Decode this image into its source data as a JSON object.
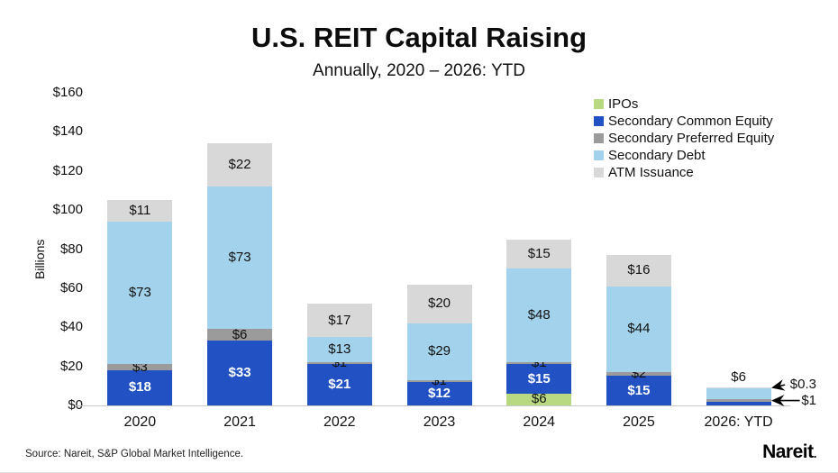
{
  "page": {
    "source_note": "Source: Nareit, S&P Global Market Intelligence.",
    "brand": "Nareit",
    "brand_suffix": "."
  },
  "chart_data": {
    "type": "bar",
    "stacked": true,
    "title": "U.S. REIT Capital Raising",
    "subtitle": "Annually, 2020 – 2026: YTD",
    "ylabel": "Billions",
    "xlabel": "",
    "ylim": [
      0,
      160
    ],
    "ytick_step": 20,
    "ytick_labels": [
      "$0",
      "$20",
      "$40",
      "$60",
      "$80",
      "$100",
      "$120",
      "$140",
      "$160"
    ],
    "grid": false,
    "legend_position": "top-right",
    "categories": [
      "2020",
      "2021",
      "2022",
      "2023",
      "2024",
      "2025",
      "2026: YTD"
    ],
    "series": [
      {
        "name": "IPOs",
        "color": "#b8d981",
        "values": [
          0,
          0,
          0,
          0,
          6,
          0,
          0
        ]
      },
      {
        "name": "Secondary Common Equity",
        "color": "#2151c2",
        "values": [
          18,
          33,
          21,
          12,
          15,
          15,
          2
        ]
      },
      {
        "name": "Secondary Preferred Equity",
        "color": "#9b9b9b",
        "values": [
          3,
          6,
          1,
          1,
          1,
          2,
          1
        ]
      },
      {
        "name": "Secondary Debt",
        "color": "#a3d3ec",
        "values": [
          73,
          73,
          13,
          29,
          48,
          44,
          6
        ]
      },
      {
        "name": "ATM Issuance",
        "color": "#d8d8d8",
        "values": [
          11,
          22,
          17,
          20,
          15,
          16,
          0.3
        ]
      }
    ],
    "bar_labels": [
      [
        "",
        "$18",
        "$3",
        "$73",
        "$11"
      ],
      [
        "",
        "$33",
        "$6",
        "$73",
        "$22"
      ],
      [
        "",
        "$21",
        "$1",
        "$13",
        "$17"
      ],
      [
        "",
        "$12",
        "$1",
        "$29",
        "$20"
      ],
      [
        "$6",
        "$15",
        "$1",
        "$48",
        "$15"
      ],
      [
        "",
        "$15",
        "$2",
        "$44",
        "$16"
      ],
      [
        "",
        "$2",
        "$1",
        "$6",
        "$0.3"
      ]
    ],
    "label_overrides": {
      "6": {
        "1": {
          "pos": "inside",
          "dy": -10
        },
        "2": {
          "pos": "callout",
          "dy": 0
        },
        "3": {
          "pos": "above",
          "dy": 0
        },
        "4": {
          "pos": "callout",
          "dy": -3
        }
      }
    }
  }
}
